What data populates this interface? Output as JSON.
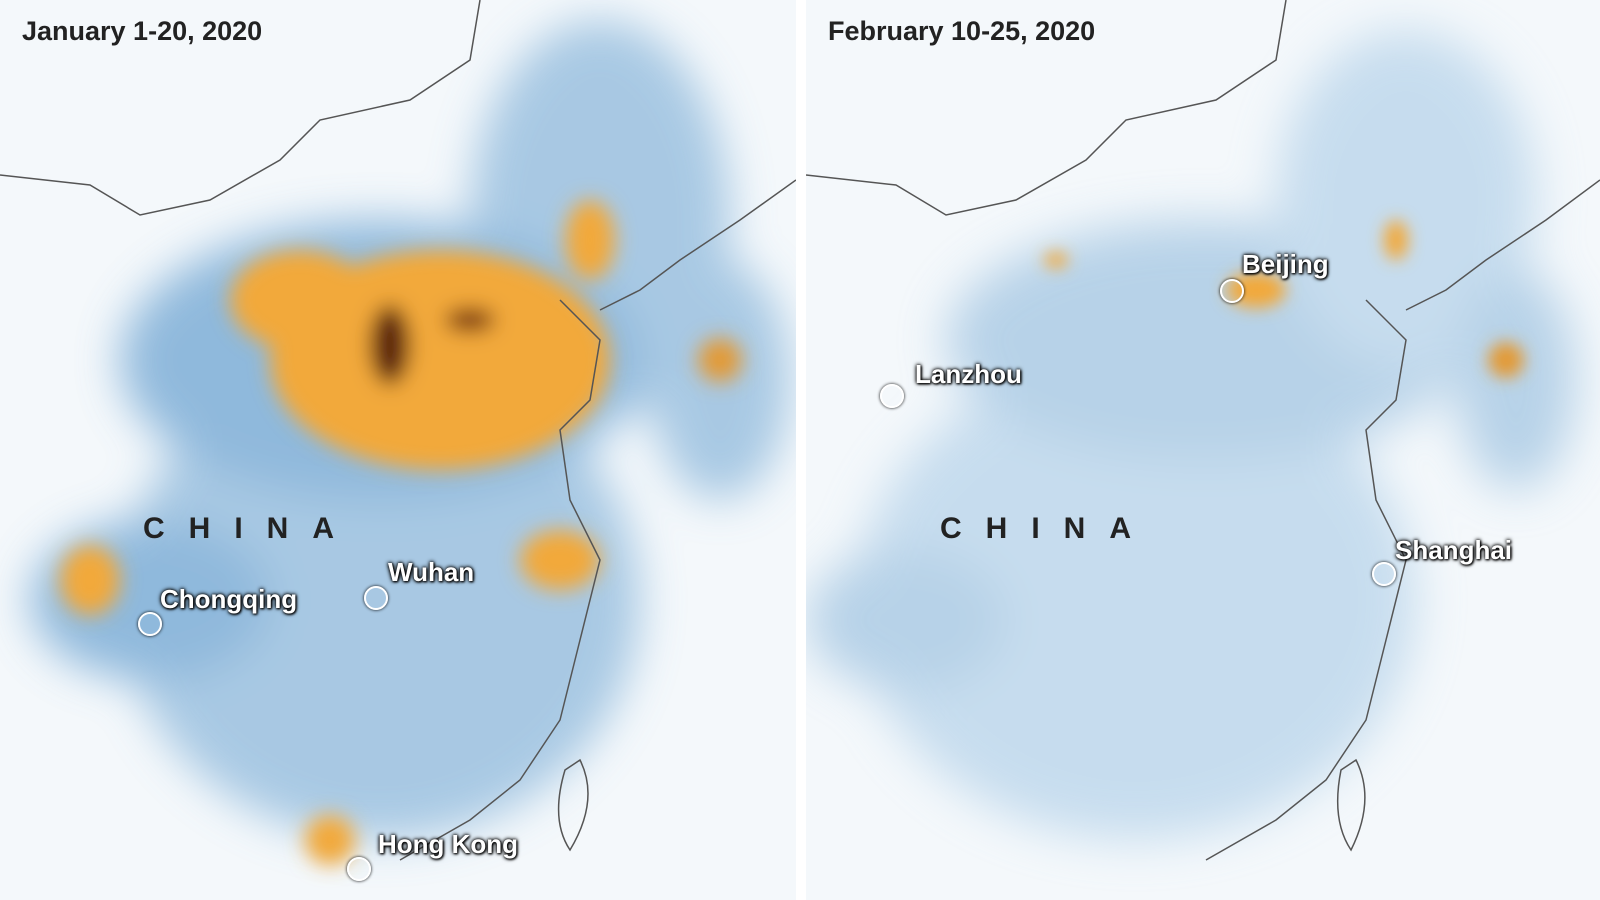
{
  "colors": {
    "low": "#ffffff",
    "mid": "#4a8cc4",
    "high": "#f2a93b",
    "very_high": "#4a1a05",
    "border": "#555555"
  },
  "panels": [
    {
      "title": "January 1-20, 2020",
      "country_label": "CHINA",
      "cities": [
        {
          "name": "Wuhan"
        },
        {
          "name": "Chongqing"
        },
        {
          "name": "Hong Kong"
        }
      ]
    },
    {
      "title": "February 10-25, 2020",
      "country_label": "CHINA",
      "cities": [
        {
          "name": "Beijing"
        },
        {
          "name": "Lanzhou"
        },
        {
          "name": "Shanghai"
        }
      ]
    }
  ]
}
